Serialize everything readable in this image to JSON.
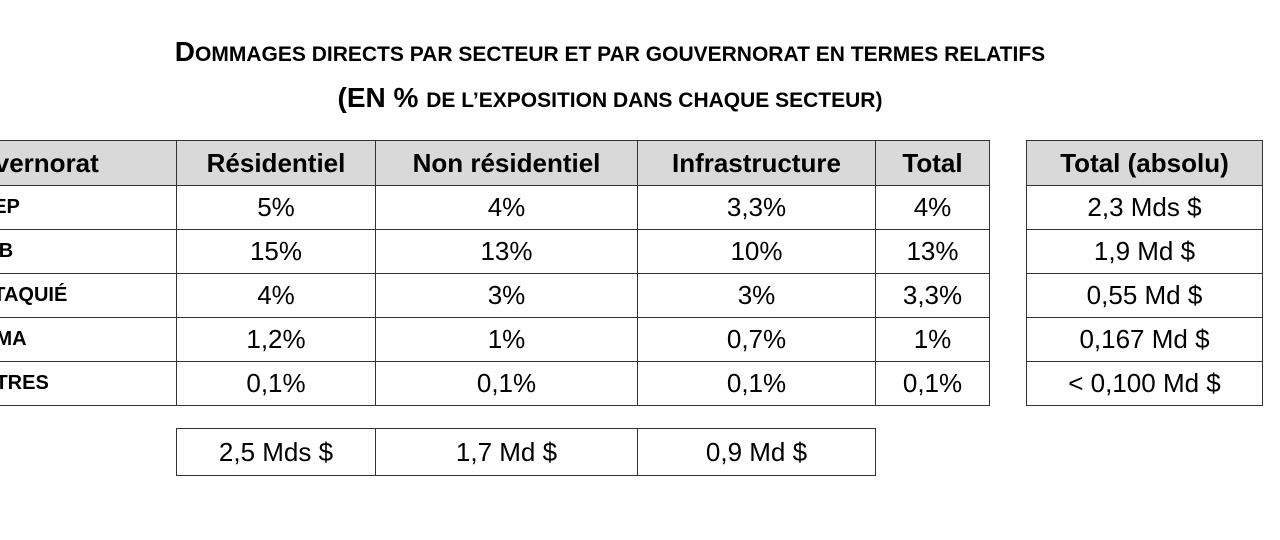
{
  "title": {
    "line1": {
      "cap": "D",
      "rest": "OMMAGES DIRECTS PAR SECTEUR ET PAR GOUVERNORAT EN TERMES RELATIFS"
    },
    "line2": {
      "cap": "(EN % ",
      "rest": "DE L’EXPOSITION DANS CHAQUE SECTEUR)"
    }
  },
  "table": {
    "headers": [
      "ouvernorat",
      "Résidentiel",
      "Non résidentiel",
      "Infrastructure",
      "Total"
    ],
    "rows": [
      {
        "gov": "LEP",
        "res": "5%",
        "nonres": "4%",
        "infra": "3,3%",
        "total": "4%"
      },
      {
        "gov": "LIB",
        "res": "15%",
        "nonres": "13%",
        "infra": "10%",
        "total": "13%"
      },
      {
        "gov": "TTAQUIÉ",
        "res": "4%",
        "nonres": "3%",
        "infra": "3%",
        "total": "3,3%"
      },
      {
        "gov": "AMA",
        "res": "1,2%",
        "nonres": "1%",
        "infra": "0,7%",
        "total": "1%"
      },
      {
        "gov": "UTRES",
        "res": "0,1%",
        "nonres": "0,1%",
        "infra": "0,1%",
        "total": "0,1%"
      }
    ]
  },
  "absolute": {
    "header": "Total (absolu)",
    "values": [
      "2,3 Mds $",
      "1,9 Md $",
      "0,55 Md $",
      "0,167 Md $",
      "< 0,100 Md $"
    ]
  },
  "sector_totals": {
    "res": "2,5 Mds $",
    "nonres": "1,7 Md $",
    "infra": "0,9 Md $"
  }
}
